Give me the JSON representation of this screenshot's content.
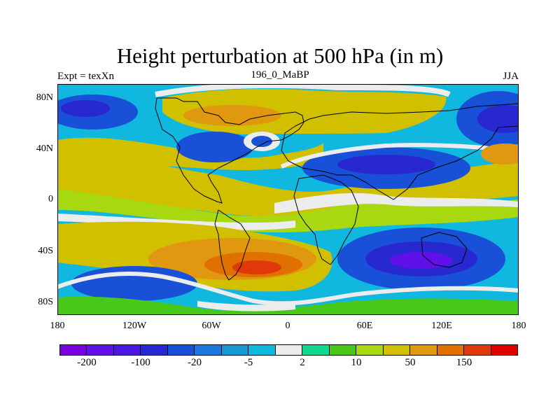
{
  "title": "Height perturbation at 500 hPa (in m)",
  "left_label": "Expt = texXn",
  "center_label": "196_0_MaBP",
  "right_label": "JJA",
  "y_ticks": [
    "80N",
    "40N",
    "0",
    "40S",
    "80S"
  ],
  "x_ticks": [
    "180",
    "120W",
    "60W",
    "0",
    "60E",
    "120E",
    "180"
  ],
  "colorbar": {
    "colors": [
      "#7a00e0",
      "#6010e8",
      "#4a18e0",
      "#2828d0",
      "#1850d8",
      "#1a78e0",
      "#1598d8",
      "#10b8e0",
      "#ececec",
      "#10d890",
      "#48c818",
      "#a8d810",
      "#d0c000",
      "#e09810",
      "#e07000",
      "#e03808",
      "#e00000"
    ],
    "labels": [
      "-200",
      "-100",
      "-20",
      "-5",
      "2",
      "10",
      "50",
      "150"
    ]
  }
}
